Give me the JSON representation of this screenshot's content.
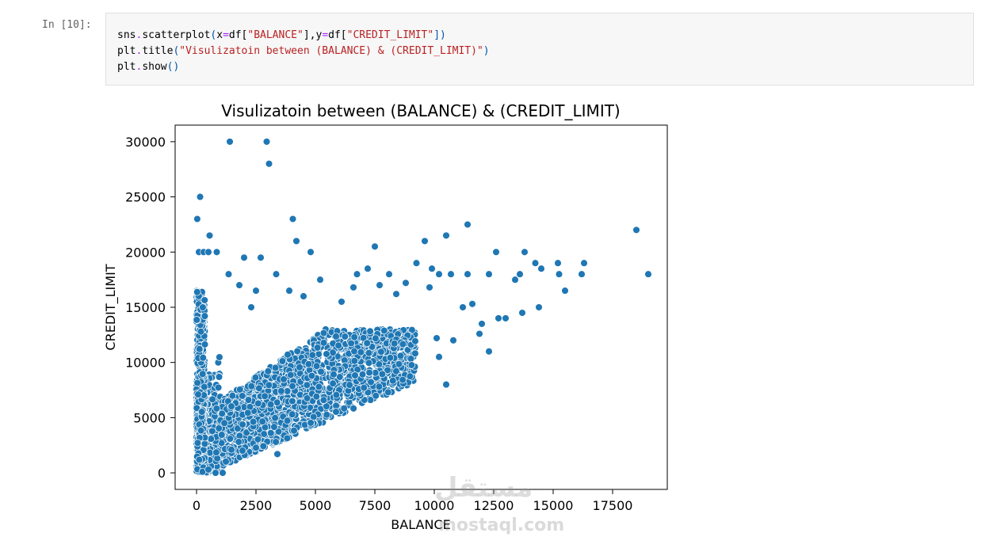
{
  "cell": {
    "prompt": "In [10]:",
    "code": [
      {
        "parts": [
          {
            "t": "sns",
            "c": ""
          },
          {
            "t": ".",
            "c": "op"
          },
          {
            "t": "scatterplot",
            "c": ""
          },
          {
            "t": "(",
            "c": "paren"
          },
          {
            "t": "x",
            "c": ""
          },
          {
            "t": "=",
            "c": "op"
          },
          {
            "t": "df[",
            "c": ""
          },
          {
            "t": "\"BALANCE\"",
            "c": "str"
          },
          {
            "t": "],y",
            "c": ""
          },
          {
            "t": "=",
            "c": "op"
          },
          {
            "t": "df[",
            "c": ""
          },
          {
            "t": "\"CREDIT_LIMIT\"",
            "c": "str"
          },
          {
            "t": "])",
            "c": "paren"
          }
        ]
      },
      {
        "parts": [
          {
            "t": "plt",
            "c": ""
          },
          {
            "t": ".",
            "c": "op"
          },
          {
            "t": "title",
            "c": ""
          },
          {
            "t": "(",
            "c": "paren"
          },
          {
            "t": "\"Visulizatoin between (BALANCE) & (CREDIT_LIMIT)\"",
            "c": "str"
          },
          {
            "t": ")",
            "c": "paren"
          }
        ]
      },
      {
        "parts": [
          {
            "t": "plt",
            "c": ""
          },
          {
            "t": ".",
            "c": "op"
          },
          {
            "t": "show",
            "c": ""
          },
          {
            "t": "()",
            "c": "paren"
          }
        ]
      }
    ]
  },
  "watermark": {
    "arabic": "مستقل",
    "latin": "mostaql.com"
  },
  "chart_data": {
    "type": "scatter",
    "title": "Visulizatoin between (BALANCE) & (CREDIT_LIMIT)",
    "xlabel": "BALANCE",
    "ylabel": "CREDIT_LIMIT",
    "xlim": [
      -900,
      19800
    ],
    "ylim": [
      -1500,
      31500
    ],
    "xticks": [
      0,
      2500,
      5000,
      7500,
      10000,
      12500,
      15000,
      17500
    ],
    "yticks": [
      0,
      5000,
      10000,
      15000,
      20000,
      25000,
      30000
    ],
    "marker_color": "#1f77b4",
    "grid": false,
    "points": [
      [
        1400,
        30000
      ],
      [
        2950,
        30000
      ],
      [
        3050,
        28000
      ],
      [
        150,
        25000
      ],
      [
        30,
        23000
      ],
      [
        4050,
        23000
      ],
      [
        11400,
        22500
      ],
      [
        550,
        21500
      ],
      [
        10500,
        21500
      ],
      [
        18500,
        22000
      ],
      [
        4200,
        21000
      ],
      [
        9600,
        21000
      ],
      [
        7500,
        20500
      ],
      [
        4800,
        20000
      ],
      [
        12600,
        20000
      ],
      [
        13800,
        20000
      ],
      [
        100,
        20000
      ],
      [
        300,
        20000
      ],
      [
        500,
        20000
      ],
      [
        850,
        20000
      ],
      [
        2000,
        19500
      ],
      [
        2700,
        19500
      ],
      [
        9250,
        19000
      ],
      [
        14250,
        19000
      ],
      [
        15200,
        19000
      ],
      [
        16300,
        19000
      ],
      [
        9900,
        18500
      ],
      [
        10200,
        18000
      ],
      [
        13600,
        18000
      ],
      [
        14500,
        18500
      ],
      [
        15250,
        18000
      ],
      [
        16200,
        18000
      ],
      [
        19000,
        18000
      ],
      [
        3350,
        18000
      ],
      [
        1350,
        18000
      ],
      [
        6750,
        18000
      ],
      [
        7200,
        18500
      ],
      [
        8100,
        18000
      ],
      [
        10700,
        18000
      ],
      [
        11400,
        18000
      ],
      [
        12300,
        18000
      ],
      [
        13400,
        17500
      ],
      [
        15500,
        16500
      ],
      [
        14400,
        15000
      ],
      [
        13700,
        14500
      ],
      [
        12300,
        11000
      ],
      [
        10500,
        8000
      ],
      [
        10200,
        10500
      ],
      [
        3400,
        1700
      ],
      [
        800,
        0
      ],
      [
        1100,
        0
      ],
      [
        250,
        100
      ],
      [
        500,
        300
      ],
      [
        4500,
        16000
      ],
      [
        5200,
        17500
      ],
      [
        3900,
        16500
      ],
      [
        2500,
        16500
      ],
      [
        1800,
        17000
      ],
      [
        2300,
        15000
      ],
      [
        6100,
        15500
      ],
      [
        6600,
        16800
      ],
      [
        7700,
        17000
      ],
      [
        8400,
        16200
      ],
      [
        8800,
        17200
      ],
      [
        9800,
        16800
      ],
      [
        11200,
        15000
      ],
      [
        11600,
        15300
      ],
      [
        12700,
        14000
      ],
      [
        13000,
        14000
      ],
      [
        12000,
        13500
      ],
      [
        11900,
        12600
      ],
      [
        10800,
        12000
      ],
      [
        10100,
        12200
      ]
    ]
  }
}
